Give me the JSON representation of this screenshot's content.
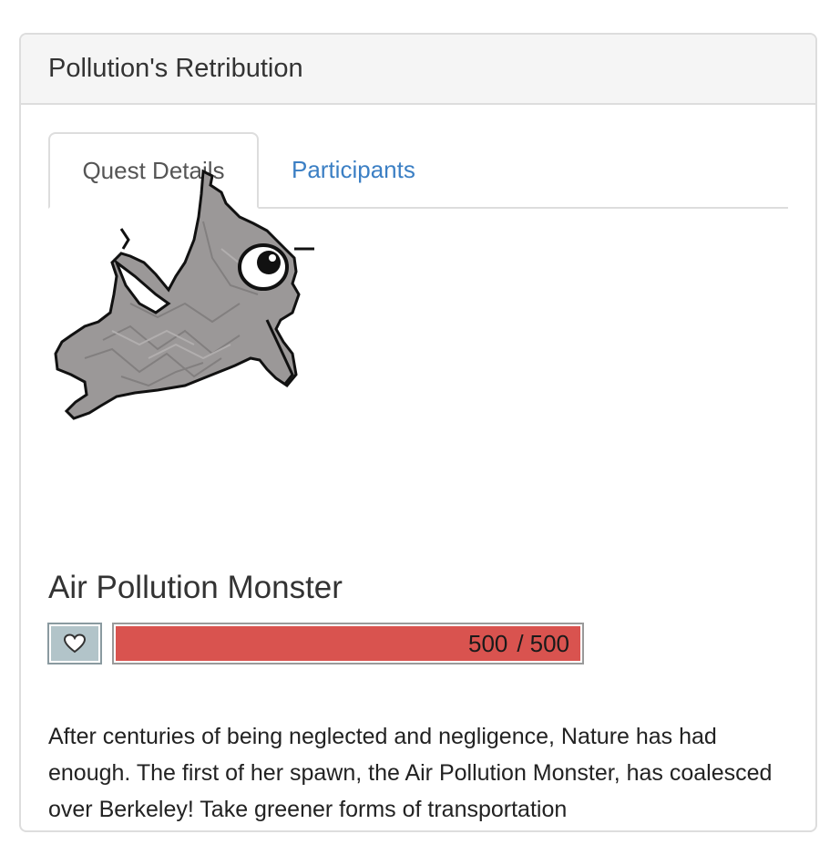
{
  "quest": {
    "title": "Pollution's Retribution"
  },
  "tabs": [
    {
      "label": "Quest Details",
      "active": true
    },
    {
      "label": "Participants",
      "active": false
    }
  ],
  "boss": {
    "name": "Air Pollution Monster",
    "hp_current": "500",
    "hp_separator": "/",
    "hp_max": "500",
    "hp_fraction": 1.0,
    "heart_icon": "heart-outline-icon",
    "bar_color": "#d9534f"
  },
  "description": "After centuries of being neglected and negligence, Nature has had enough. The first of her spawn, the Air Pollution Monster, has coalesced over Berkeley! Take greener forms of transportation",
  "colors": {
    "link": "#3b7fc4",
    "heading_bg": "#f5f5f5"
  }
}
